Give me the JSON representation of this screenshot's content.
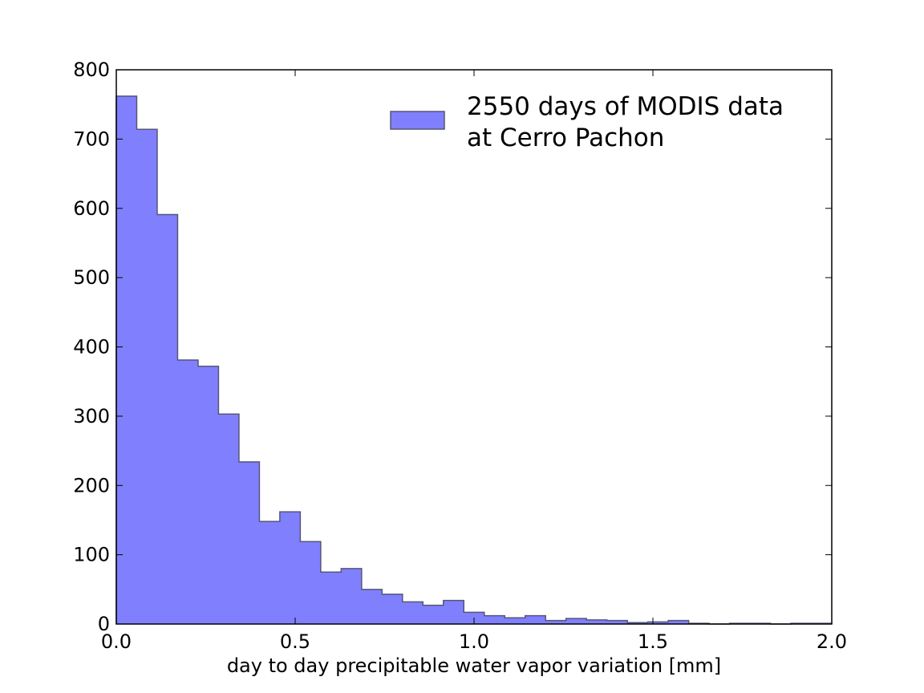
{
  "chart_data": {
    "type": "bar",
    "histogram": true,
    "title": "",
    "xlabel": "day to day precipitable water vapor variation [mm]",
    "ylabel": "",
    "xlim": [
      0.0,
      2.0
    ],
    "ylim": [
      0,
      800
    ],
    "xticks": [
      "0.0",
      "0.5",
      "1.0",
      "1.5",
      "2.0"
    ],
    "yticks": [
      "0",
      "100",
      "200",
      "300",
      "400",
      "500",
      "600",
      "700",
      "800"
    ],
    "grid": false,
    "legend_position": "top-right",
    "bin_edges": [
      0.0,
      0.0571,
      0.1143,
      0.1714,
      0.2286,
      0.2857,
      0.3429,
      0.4,
      0.4571,
      0.5143,
      0.5714,
      0.6286,
      0.6857,
      0.7429,
      0.8,
      0.8571,
      0.9143,
      0.9714,
      1.0286,
      1.0857,
      1.1429,
      1.2,
      1.2571,
      1.3143,
      1.3714,
      1.4286,
      1.4857,
      1.5429,
      1.6,
      1.6571,
      1.7143,
      1.7714,
      1.8286,
      1.8857,
      1.9429,
      2.0
    ],
    "series": [
      {
        "name": "2550 days of MODIS data\nat Cerro Pachon",
        "legend_lines": [
          "2550 days of MODIS data",
          "at Cerro Pachon"
        ],
        "values": [
          762,
          714,
          591,
          381,
          372,
          303,
          234,
          148,
          162,
          119,
          75,
          80,
          50,
          43,
          32,
          27,
          34,
          17,
          12,
          9,
          12,
          5,
          8,
          6,
          5,
          2,
          3,
          5,
          1,
          0,
          1,
          1,
          0,
          1,
          1
        ],
        "color": "#8080ff",
        "edge_color": "#555577"
      }
    ]
  }
}
